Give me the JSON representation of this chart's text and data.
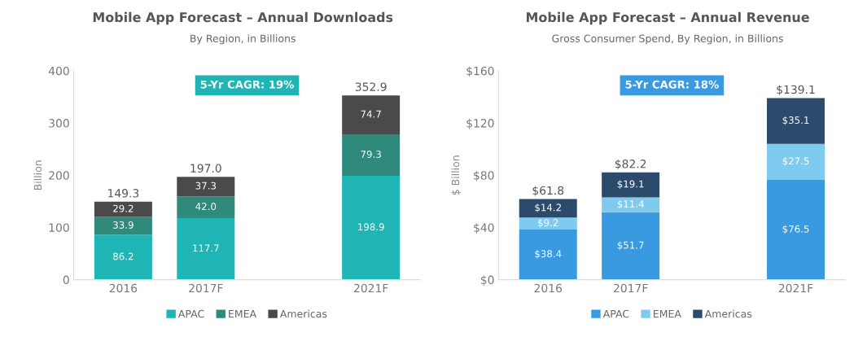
{
  "chart_data": [
    {
      "type": "bar",
      "title": "Mobile App Forecast – Annual Downloads",
      "subtitle": "By Region, in Billions",
      "ylabel": "Billion",
      "annotations": [
        "5-Yr CAGR: 19%"
      ],
      "categories": [
        "2016",
        "2017F",
        null,
        "2021F"
      ],
      "stacked": true,
      "ylim": [
        0,
        400
      ],
      "yticks": [
        0,
        100,
        200,
        300,
        400
      ],
      "grid": false,
      "legend": "bottom",
      "series": [
        {
          "name": "APAC",
          "color": "#1fb5b5",
          "values": [
            86.2,
            117.7,
            null,
            198.9
          ],
          "value_labels": [
            "86.2",
            "117.7",
            null,
            "198.9"
          ]
        },
        {
          "name": "EMEA",
          "color": "#2f8a7c",
          "values": [
            33.9,
            42.0,
            null,
            79.3
          ],
          "value_labels": [
            "33.9",
            "42.0",
            null,
            "79.3"
          ]
        },
        {
          "name": "Americas",
          "color": "#4a4a4a",
          "values": [
            29.2,
            37.3,
            null,
            74.7
          ],
          "value_labels": [
            "29.2",
            "37.3",
            null,
            "74.7"
          ]
        }
      ],
      "totals": [
        "149.3",
        "197.0",
        null,
        "352.9"
      ]
    },
    {
      "type": "bar",
      "title": "Mobile App Forecast – Annual Revenue",
      "subtitle": "Gross Consumer Spend, By Region, in Billions",
      "ylabel": "$ Billion",
      "annotations": [
        "5-Yr CAGR: 18%"
      ],
      "categories": [
        "2016",
        "2017F",
        null,
        "2021F"
      ],
      "stacked": true,
      "ylim": [
        0,
        160
      ],
      "yticks": [
        {
          "value": 0,
          "label": "$0"
        },
        {
          "value": 40,
          "label": "$40"
        },
        {
          "value": 80,
          "label": "$80"
        },
        {
          "value": 120,
          "label": "$120"
        },
        {
          "value": 160,
          "label": "$160"
        }
      ],
      "grid": false,
      "legend": "bottom",
      "series": [
        {
          "name": "APAC",
          "color": "#3a9ae0",
          "values": [
            38.4,
            51.7,
            null,
            76.5
          ],
          "value_labels": [
            "$38.4",
            "$51.7",
            null,
            "$76.5"
          ]
        },
        {
          "name": "EMEA",
          "color": "#7fcbef",
          "values": [
            9.2,
            11.4,
            null,
            27.5
          ],
          "value_labels": [
            "$9.2",
            "$11.4",
            null,
            "$27.5"
          ]
        },
        {
          "name": "Americas",
          "color": "#2c4a6b",
          "values": [
            14.2,
            19.1,
            null,
            35.1
          ],
          "value_labels": [
            "$14.2",
            "$19.1",
            null,
            "$35.1"
          ]
        }
      ],
      "totals": [
        "$61.8",
        "$82.2",
        null,
        "$139.1"
      ]
    }
  ]
}
